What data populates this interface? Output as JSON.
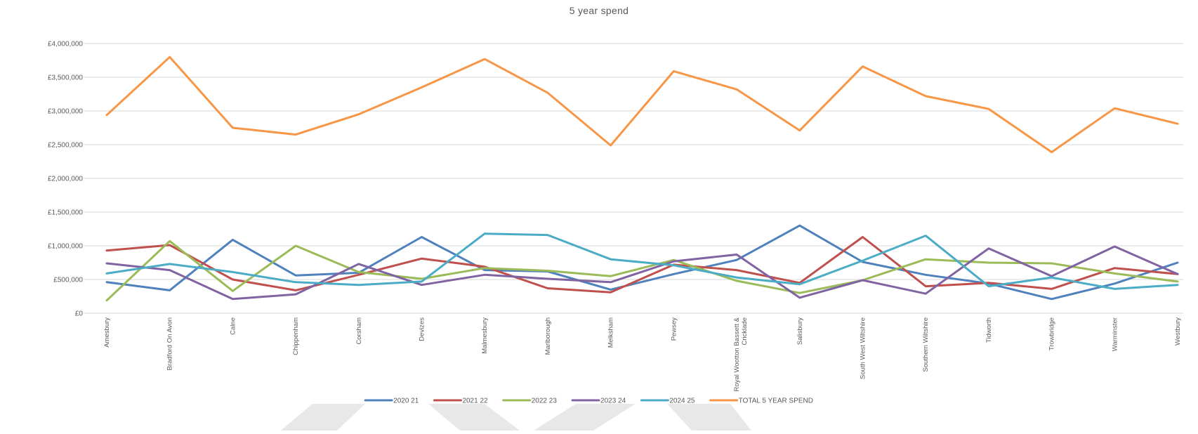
{
  "chart_data": {
    "type": "line",
    "title": "5 year spend",
    "xlabel": "",
    "ylabel": "",
    "ylim": [
      0,
      4000000
    ],
    "y_ticks": [
      {
        "value": 0,
        "label": "£0"
      },
      {
        "value": 500000,
        "label": "£500,000"
      },
      {
        "value": 1000000,
        "label": "£1,000,000"
      },
      {
        "value": 1500000,
        "label": "£1,500,000"
      },
      {
        "value": 2000000,
        "label": "£2,000,000"
      },
      {
        "value": 2500000,
        "label": "£2,500,000"
      },
      {
        "value": 3000000,
        "label": "£3,000,000"
      },
      {
        "value": 3500000,
        "label": "£3,500,000"
      },
      {
        "value": 4000000,
        "label": "£4,000,000"
      }
    ],
    "grid": true,
    "legend_position": "bottom",
    "categories": [
      "Amesbury",
      "Bradford On Avon",
      "Calne",
      "Chippenham",
      "Corsham",
      "Devizes",
      "Malmesbury",
      "Marlborough",
      "Melksham",
      "Pewsey",
      "Royal Wootton Bassett & Cricklade",
      "Salisbury",
      "South West Wiltshire",
      "Southern Wiltshire",
      "Tidworth",
      "Trowbridge",
      "Warminster",
      "Westbury"
    ],
    "category_display_lines": [
      [
        "Amesbury"
      ],
      [
        "Bradford On Avon"
      ],
      [
        "Calne"
      ],
      [
        "Chippenham"
      ],
      [
        "Corsham"
      ],
      [
        "Devizes"
      ],
      [
        "Malmesbury"
      ],
      [
        "Marlborough"
      ],
      [
        "Melksham"
      ],
      [
        "Pewsey"
      ],
      [
        "Royal Wootton Bassett &",
        "Cricklade"
      ],
      [
        "Salisbury"
      ],
      [
        "South West Wiltshire"
      ],
      [
        "Southern Wiltshire"
      ],
      [
        "Tidworth"
      ],
      [
        "Trowbridge"
      ],
      [
        "Warminster"
      ],
      [
        "Westbury"
      ]
    ],
    "series": [
      {
        "name": "2020 21",
        "color": "#4f81bd",
        "values": [
          460000,
          340000,
          1090000,
          560000,
          600000,
          1130000,
          640000,
          620000,
          350000,
          580000,
          790000,
          1300000,
          760000,
          570000,
          440000,
          210000,
          440000,
          750000
        ]
      },
      {
        "name": "2021 22",
        "color": "#c0504d",
        "values": [
          930000,
          1010000,
          500000,
          340000,
          570000,
          810000,
          690000,
          370000,
          310000,
          720000,
          640000,
          450000,
          1130000,
          400000,
          450000,
          360000,
          670000,
          580000
        ]
      },
      {
        "name": "2022 23",
        "color": "#9bbb59",
        "values": [
          190000,
          1070000,
          330000,
          1000000,
          610000,
          510000,
          670000,
          630000,
          550000,
          790000,
          480000,
          300000,
          490000,
          800000,
          750000,
          740000,
          590000,
          470000
        ]
      },
      {
        "name": "2023 24",
        "color": "#8064a2",
        "values": [
          740000,
          640000,
          210000,
          280000,
          730000,
          420000,
          570000,
          510000,
          460000,
          770000,
          870000,
          230000,
          490000,
          290000,
          960000,
          550000,
          990000,
          580000
        ]
      },
      {
        "name": "2024 25",
        "color": "#4bacc6",
        "values": [
          590000,
          730000,
          610000,
          460000,
          420000,
          470000,
          1180000,
          1160000,
          800000,
          710000,
          530000,
          430000,
          780000,
          1150000,
          400000,
          530000,
          360000,
          420000
        ]
      },
      {
        "name": "TOTAL 5 YEAR SPEND",
        "color": "#f79646",
        "values": [
          2940000,
          3800000,
          2750000,
          2650000,
          2950000,
          3350000,
          3770000,
          3270000,
          2490000,
          3590000,
          3320000,
          2710000,
          3660000,
          3220000,
          3030000,
          2390000,
          3040000,
          2810000
        ]
      }
    ]
  }
}
